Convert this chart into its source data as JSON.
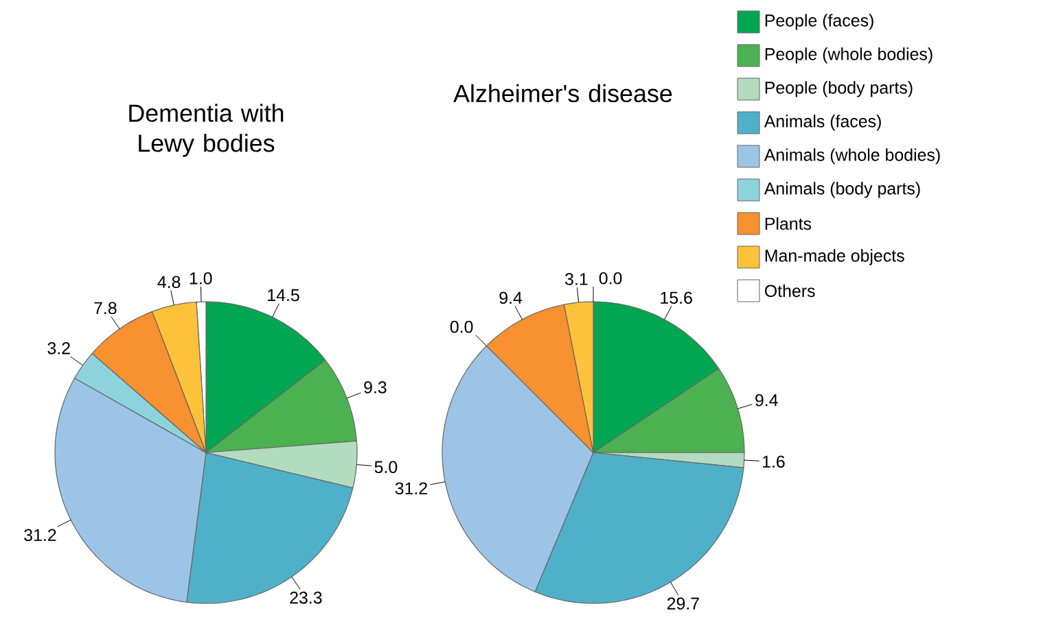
{
  "chart_data": {
    "type": "pie",
    "categories": [
      "People (faces)",
      "People (whole bodies)",
      "People (body parts)",
      "Animals (faces)",
      "Animals (whole bodies)",
      "Animals (body parts)",
      "Plants",
      "Man-made objects",
      "Others"
    ],
    "colors": [
      "#00a651",
      "#4cb151",
      "#b2dbbf",
      "#4fb0c9",
      "#9cc4e6",
      "#8dd3dc",
      "#f7902f",
      "#fdc23a",
      "#ffffff"
    ],
    "series": [
      {
        "name": "Dementia with Lewy bodies",
        "values": [
          14.5,
          9.3,
          5.0,
          23.3,
          31.2,
          3.2,
          7.8,
          4.8,
          1.0
        ],
        "value_labels": [
          "14.5",
          "9.3",
          "5.0",
          "23.3",
          "31.2",
          "3.2",
          "7.8",
          "4.8",
          "1.0"
        ]
      },
      {
        "name": "Alzheimer's disease",
        "values": [
          15.6,
          9.4,
          1.6,
          29.7,
          31.2,
          0.0,
          9.4,
          3.1,
          0.0
        ],
        "value_labels": [
          "15.6",
          "9.4",
          "1.6",
          "29.7",
          "31.2",
          "0.0",
          "9.4",
          "3.1",
          "0.0"
        ]
      }
    ],
    "legend": "top right"
  }
}
